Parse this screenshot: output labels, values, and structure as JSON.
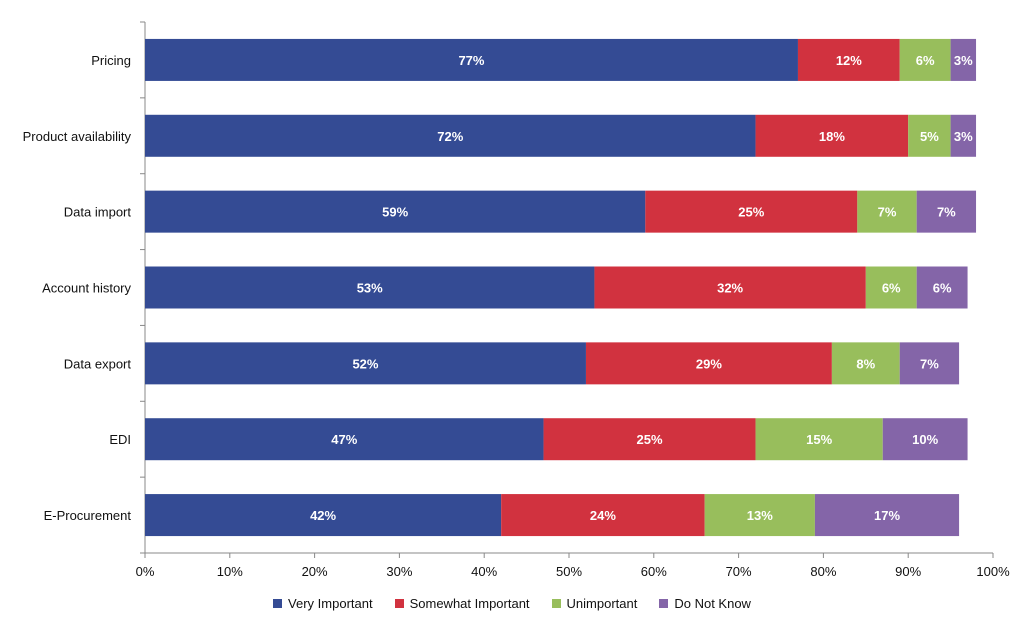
{
  "chart_data": {
    "type": "bar",
    "orientation": "horizontal",
    "stacked": true,
    "title": "",
    "xlabel": "",
    "ylabel": "",
    "xlim": [
      0,
      100
    ],
    "x_ticks": [
      "0%",
      "10%",
      "20%",
      "30%",
      "40%",
      "50%",
      "60%",
      "70%",
      "80%",
      "90%",
      "100%"
    ],
    "categories": [
      "Pricing",
      "Product availability",
      "Data import",
      "Account history",
      "Data export",
      "EDI",
      "E-Procurement"
    ],
    "series": [
      {
        "name": "Very Important",
        "color": "#344B94",
        "values": [
          77,
          72,
          59,
          53,
          52,
          47,
          42
        ],
        "labels": [
          "77%",
          "72%",
          "59%",
          "53%",
          "52%",
          "47%",
          "42%"
        ]
      },
      {
        "name": "Somewhat Important",
        "color": "#D1323F",
        "values": [
          12,
          18,
          25,
          32,
          29,
          25,
          24
        ],
        "labels": [
          "12%",
          "18%",
          "25%",
          "32%",
          "29%",
          "25%",
          "24%"
        ]
      },
      {
        "name": "Unimportant",
        "color": "#98BE5C",
        "values": [
          6,
          5,
          7,
          6,
          8,
          15,
          13
        ],
        "labels": [
          "6%",
          "5%",
          "7%",
          "6%",
          "8%",
          "15%",
          "13%"
        ]
      },
      {
        "name": "Do Not Know",
        "color": "#8465A8",
        "values": [
          3,
          3,
          7,
          6,
          7,
          10,
          17
        ],
        "labels": [
          "3%",
          "3%",
          "7%",
          "6%",
          "7%",
          "10%",
          "17%"
        ]
      }
    ],
    "legend_position": "bottom",
    "grid": false
  }
}
